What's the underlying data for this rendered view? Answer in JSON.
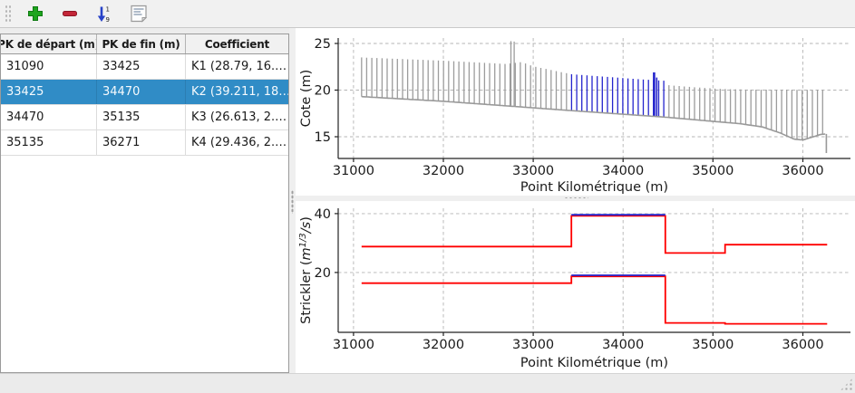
{
  "toolbar": {
    "buttons": [
      {
        "id": "add",
        "icon": "plus-icon",
        "color": "#1ea51e"
      },
      {
        "id": "remove",
        "icon": "minus-icon",
        "color": "#c32638"
      },
      {
        "id": "sort",
        "icon": "sort-numeric-icon",
        "color": "#2742c8",
        "top_char": "1",
        "bottom_char": "9"
      },
      {
        "id": "document",
        "icon": "document-icon",
        "color": "#8fa0b4"
      }
    ]
  },
  "table": {
    "columns": [
      "PK de départ (m)",
      "PK de fin (m)",
      "Coefficient"
    ],
    "rows": [
      {
        "pk_start": "31090",
        "pk_end": "33425",
        "coefficient": "K1 (28.79, 16.…",
        "selected": false
      },
      {
        "pk_start": "33425",
        "pk_end": "34470",
        "coefficient": "K2 (39.211, 18…",
        "selected": true
      },
      {
        "pk_start": "34470",
        "pk_end": "35135",
        "coefficient": "K3 (26.613, 2.…",
        "selected": false
      },
      {
        "pk_start": "35135",
        "pk_end": "36271",
        "coefficient": "K4 (29.436, 2.…",
        "selected": false
      }
    ],
    "selected_row_color": "#308cc6"
  },
  "chart_data": [
    {
      "type": "line",
      "subtype": "cross-sections",
      "title": "",
      "xlabel": "Point Kilométrique (m)",
      "ylabel": "Cote (m)",
      "xlim": [
        30830,
        36530
      ],
      "ylim": [
        12.67,
        25.58
      ],
      "xticks": [
        31000,
        32000,
        33000,
        34000,
        35000,
        36000
      ],
      "yticks": [
        15,
        20,
        25
      ],
      "grid": true,
      "section_spacing_m": 57,
      "section_range": [
        31090,
        36230
      ],
      "selected_range": [
        33425,
        34470
      ],
      "bed_profile": [
        [
          31090,
          19.3
        ],
        [
          32000,
          18.8
        ],
        [
          33000,
          18.1
        ],
        [
          33425,
          17.8
        ],
        [
          34470,
          17.1
        ],
        [
          35000,
          16.65
        ],
        [
          35300,
          16.4
        ],
        [
          35550,
          16.05
        ],
        [
          35750,
          15.4
        ],
        [
          35900,
          14.75
        ],
        [
          36000,
          14.65
        ],
        [
          36100,
          14.95
        ],
        [
          36200,
          15.25
        ],
        [
          36262,
          15.3
        ]
      ],
      "top_profile": [
        [
          31090,
          23.5
        ],
        [
          32000,
          23.15
        ],
        [
          32700,
          22.8
        ],
        [
          32870,
          23.0
        ],
        [
          33000,
          22.55
        ],
        [
          33425,
          21.7
        ],
        [
          34200,
          21.15
        ],
        [
          34460,
          21.0
        ],
        [
          34470,
          20.55
        ],
        [
          34800,
          20.3
        ],
        [
          35100,
          20.12
        ],
        [
          35400,
          20.05
        ],
        [
          36230,
          20.02
        ]
      ],
      "spikes": [
        {
          "pk": 32752,
          "top": 25.25,
          "color": "#9c9c9c",
          "width": 1.3
        },
        {
          "pk": 32788,
          "top": 25.2,
          "color": "#9c9c9c",
          "width": 1.3
        },
        {
          "pk": 34345,
          "top": 21.9,
          "color": "#2424cc",
          "width": 2.6
        },
        {
          "pk": 34374,
          "top": 21.35,
          "color": "#2424cc",
          "width": 1.6
        }
      ],
      "end_drop": {
        "pk": 36262,
        "from": 15.3,
        "to": 13.25
      },
      "colors": {
        "section": "#9c9c9c",
        "selected_section": "#2424cc",
        "bed": "#999999",
        "grid": "#b4b4b4",
        "axis": "#222222"
      }
    },
    {
      "type": "line",
      "subtype": "step",
      "title": "",
      "xlabel": "Point Kilométrique (m)",
      "ylabel": "Strickler (m1/3/s)",
      "ylabel_parts": {
        "prefix": "Strickler (",
        "unit_base": "m",
        "unit_exp": "1/3",
        "unit_suffix": "/s",
        "close": ")"
      },
      "xlim": [
        30830,
        36530
      ],
      "ylim": [
        -0.3,
        41.8
      ],
      "xticks": [
        31000,
        32000,
        33000,
        34000,
        35000,
        36000
      ],
      "yticks": [
        20,
        40
      ],
      "grid": true,
      "series": [
        {
          "name": "strickler-minor-bed",
          "color": "#ff0000",
          "values": [
            {
              "pk_start": 31090,
              "pk_end": 33425,
              "k": 16.4
            },
            {
              "pk_start": 33425,
              "pk_end": 34470,
              "k": 18.7
            },
            {
              "pk_start": 34470,
              "pk_end": 35135,
              "k": 2.9
            },
            {
              "pk_start": 35135,
              "pk_end": 36271,
              "k": 2.6
            }
          ]
        },
        {
          "name": "strickler-main-bed",
          "color": "#ff0000",
          "values": [
            {
              "pk_start": 31090,
              "pk_end": 33425,
              "k": 28.79
            },
            {
              "pk_start": 33425,
              "pk_end": 34470,
              "k": 39.211
            },
            {
              "pk_start": 34470,
              "pk_end": 35135,
              "k": 26.613
            },
            {
              "pk_start": 35135,
              "pk_end": 36271,
              "k": 29.436
            }
          ]
        }
      ],
      "selected_overlay": {
        "range": [
          33425,
          34470
        ],
        "color": "#2424cc"
      },
      "colors": {
        "grid": "#b4b4b4",
        "axis": "#222222"
      }
    }
  ],
  "status_bar": {
    "text": ""
  }
}
